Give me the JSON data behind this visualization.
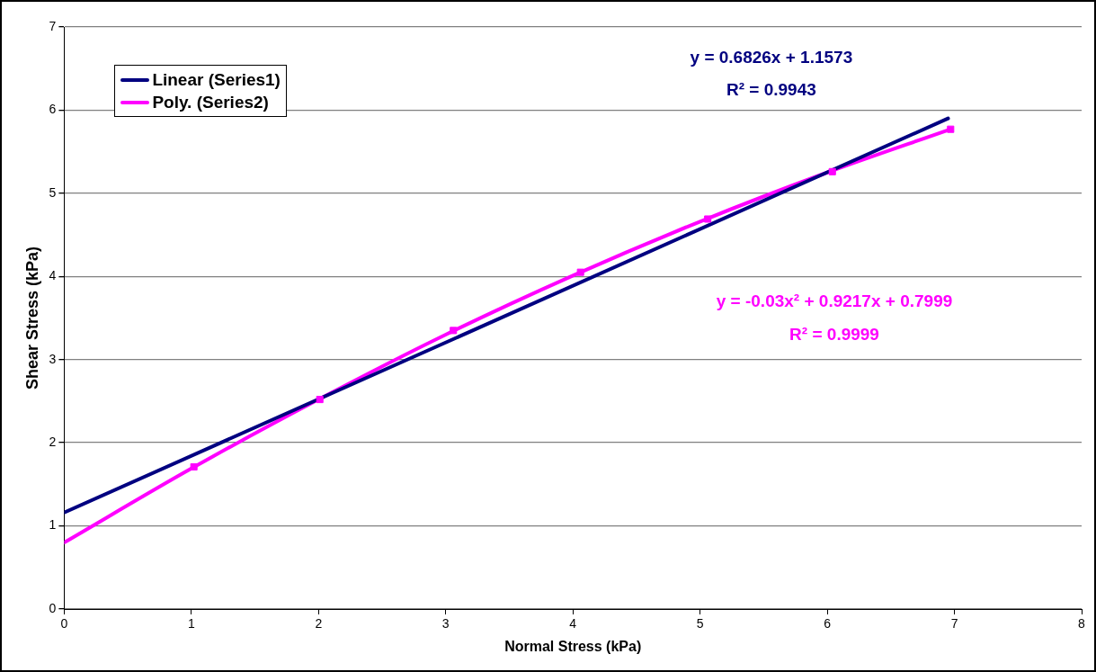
{
  "chart_data": {
    "type": "scatter",
    "xlabel": "Normal Stress (kPa)",
    "ylabel": "Shear Stress (kPa)",
    "xlim": [
      0,
      8
    ],
    "xticks": [
      0,
      1,
      2,
      3,
      4,
      5,
      6,
      7,
      8
    ],
    "ylim": [
      0,
      7
    ],
    "yticks": [
      0,
      1,
      2,
      3,
      4,
      5,
      6,
      7
    ],
    "grid": "y",
    "legend": "top left",
    "series": [
      {
        "marker": "square",
        "color": "#ff00ff",
        "x": [
          1.02,
          2.01,
          3.06,
          4.06,
          5.06,
          6.04,
          6.97
        ],
        "values": [
          1.71,
          2.52,
          3.35,
          4.05,
          4.69,
          5.26,
          5.77
        ]
      },
      {
        "type": "line",
        "marker": "none",
        "name": "Linear (Series1)",
        "color": "#000080",
        "x": [
          0,
          6.95
        ],
        "values": [
          1.16,
          5.9
        ]
      },
      {
        "type": "line",
        "marker": "none",
        "name": "Poly. (Series2)",
        "color": "#ff00ff",
        "x": [
          0,
          1,
          2,
          3,
          4,
          5,
          6,
          6.95
        ],
        "values": [
          0.8,
          1.69,
          2.52,
          3.3,
          4.01,
          4.66,
          5.25,
          5.76
        ]
      }
    ],
    "annotations": [
      "y = 0.6826x + 1.1573",
      "R² = 0.9943",
      "y = -0.03x² + 0.9217x + 0.7999",
      "R² = 0.9999"
    ]
  }
}
